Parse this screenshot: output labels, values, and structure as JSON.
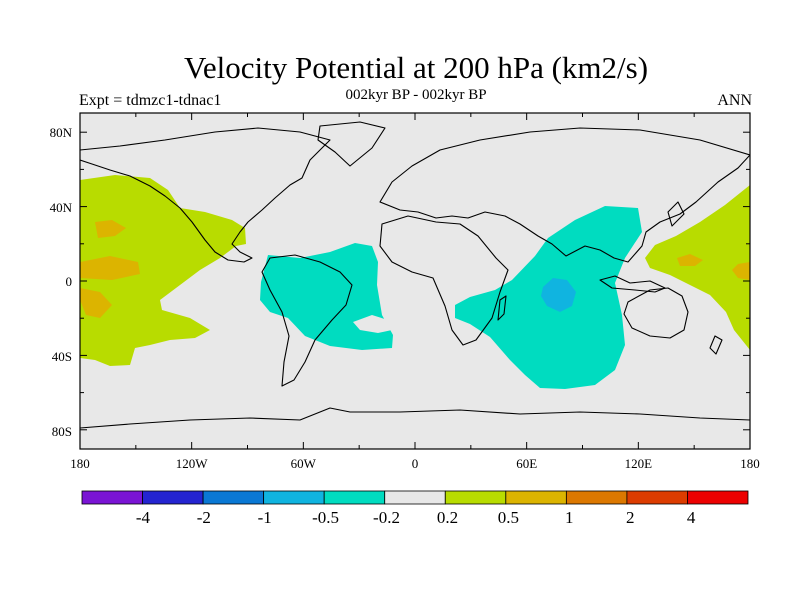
{
  "figure": {
    "title": "Velocity Potential at 200 hPa (km2/s)",
    "subtitle": "002kyr BP - 002kyr BP",
    "left_label": "Expt = tdmzc1-tdnac1",
    "right_label": "ANN"
  },
  "axes": {
    "x_ticks": [
      "180",
      "120W",
      "60W",
      "0",
      "60E",
      "120E",
      "180"
    ],
    "y_ticks": [
      "80N",
      "40N",
      "0",
      "40S",
      "80S"
    ]
  },
  "colorbar": {
    "colors": [
      "#7a14d4",
      "#2424d0",
      "#0a78d4",
      "#10b4e0",
      "#00dcc0",
      "#e8e8e8",
      "#b8dc00",
      "#dcb400",
      "#dc7800",
      "#dc3c00",
      "#ec0000"
    ],
    "labels": [
      "-4",
      "-2",
      "-1",
      "-0.5",
      "-0.2",
      "0.2",
      "0.5",
      "1",
      "2",
      "4"
    ]
  },
  "colors": {
    "background": "#e8e8e8",
    "positive_low": "#b8dc00",
    "positive_mid": "#dcb400",
    "negative_low": "#00dcc0",
    "negative_mid": "#10b4e0",
    "coast": "#000000"
  }
}
